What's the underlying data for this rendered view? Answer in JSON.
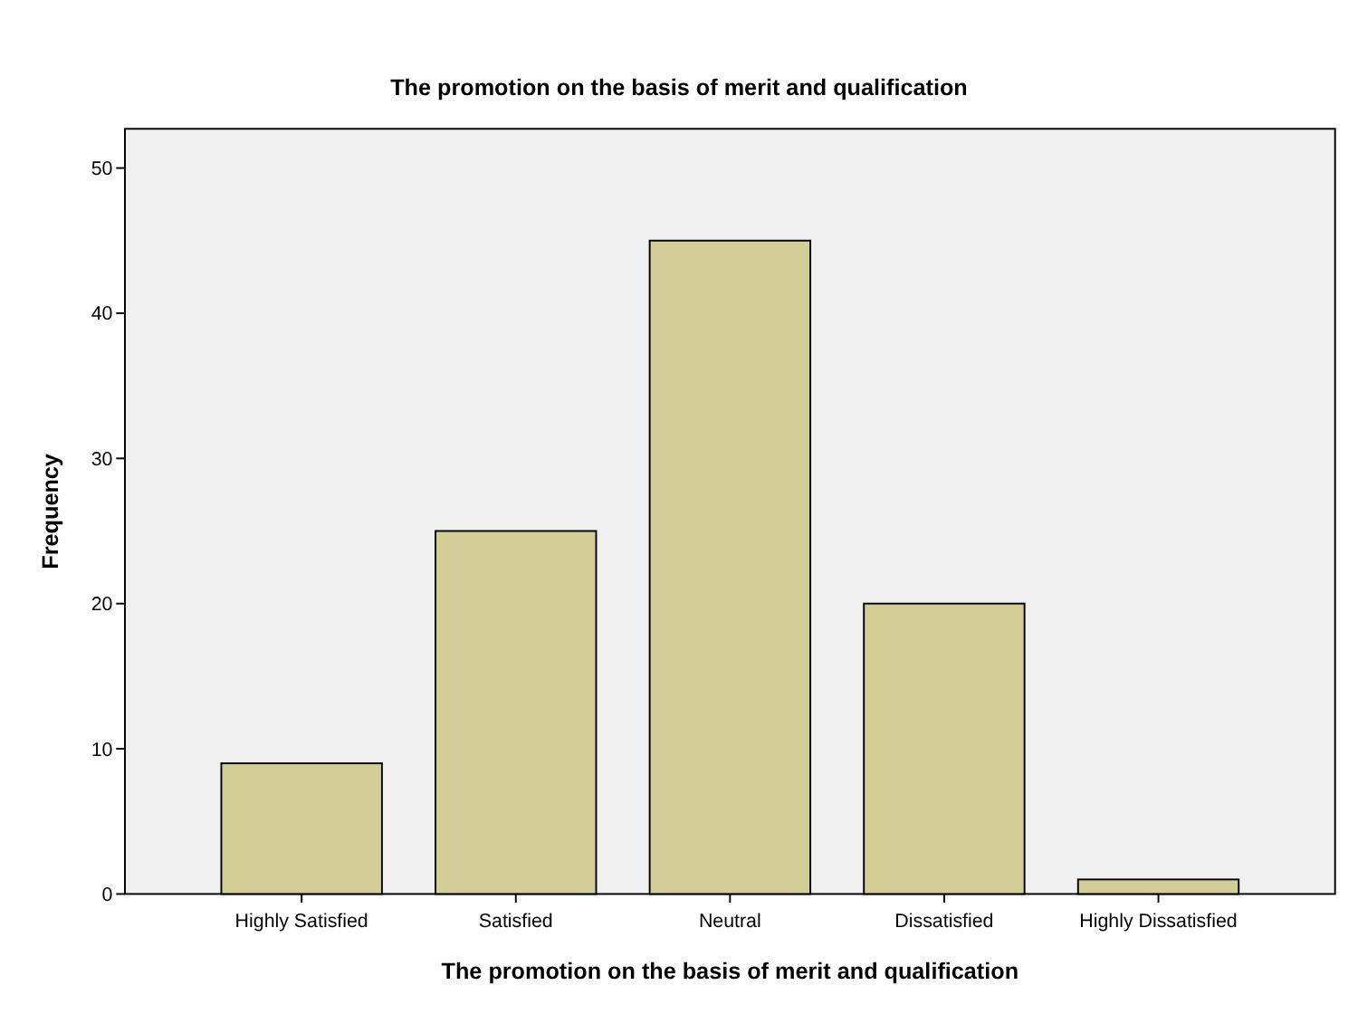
{
  "chart_data": {
    "type": "bar",
    "title": "The promotion on the basis of merit and qualification",
    "xlabel": "The promotion on the basis of merit and qualification",
    "ylabel": "Frequency",
    "categories": [
      "Highly Satisfied",
      "Satisfied",
      "Neutral",
      "Dissatisfied",
      "Highly Dissatisfied"
    ],
    "values": [
      9,
      25,
      45,
      20,
      1
    ],
    "color": "#d3ce97",
    "ylim": [
      0,
      52.7
    ],
    "yticks": [
      0,
      10,
      20,
      30,
      40,
      50
    ],
    "grid": false
  }
}
